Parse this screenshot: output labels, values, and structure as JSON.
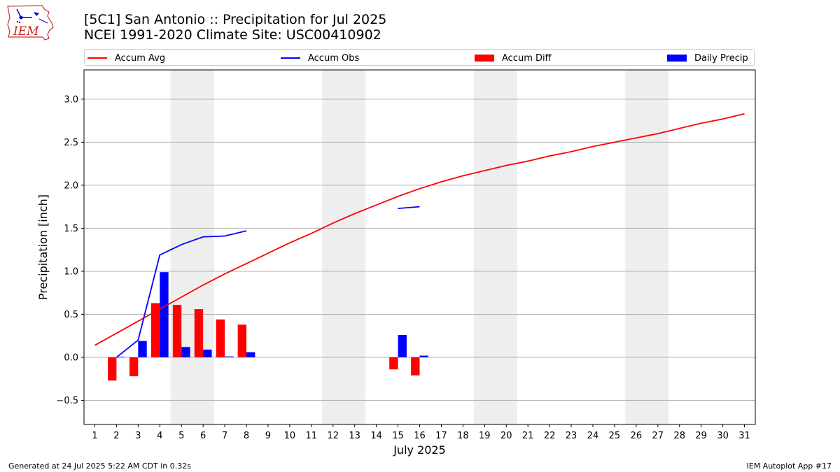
{
  "title_line1": "[5C1] San Antonio :: Precipitation for Jul 2025",
  "title_line2": "NCEI 1991-2020 Climate Site: USC00410902",
  "logo_text": "IEM",
  "footer_left": "Generated at 24 Jul 2025 5:22 AM CDT in 0.32s",
  "footer_right": "IEM Autoplot App #17",
  "colors": {
    "accum_avg": "#ff0000",
    "accum_obs": "#0000ff",
    "accum_diff": "#ff0000",
    "daily_precip": "#0000ff",
    "weekend_shade": "#eeeeee",
    "grid": "#b0b0b0"
  },
  "legend": [
    {
      "label": "Accum Avg",
      "kind": "line",
      "color": "#ff0000"
    },
    {
      "label": "Accum Obs",
      "kind": "line",
      "color": "#0000ff"
    },
    {
      "label": "Accum Diff",
      "kind": "patch",
      "color": "#ff0000"
    },
    {
      "label": "Daily Precip",
      "kind": "patch",
      "color": "#0000ff"
    }
  ],
  "chart_data": {
    "type": "bar",
    "xlabel": "July 2025",
    "ylabel": "Precipitation [inch]",
    "xlim": [
      0.5,
      31.5
    ],
    "ylim": [
      -0.78,
      3.34
    ],
    "yticks": [
      -0.5,
      0.0,
      0.5,
      1.0,
      1.5,
      2.0,
      2.5,
      3.0
    ],
    "ytick_labels": [
      "−0.5",
      "0.0",
      "0.5",
      "1.0",
      "1.5",
      "2.0",
      "2.5",
      "3.0"
    ],
    "xticks": [
      1,
      2,
      3,
      4,
      5,
      6,
      7,
      8,
      9,
      10,
      11,
      12,
      13,
      14,
      15,
      16,
      17,
      18,
      19,
      20,
      21,
      22,
      23,
      24,
      25,
      26,
      27,
      28,
      29,
      30,
      31
    ],
    "grid": "y",
    "legend_position": "top",
    "weekend_bands": [
      [
        4.5,
        6.5
      ],
      [
        11.5,
        13.5
      ],
      [
        18.5,
        20.5
      ],
      [
        25.5,
        27.5
      ]
    ],
    "series": [
      {
        "name": "Accum Avg",
        "type": "line",
        "x": [
          1,
          2,
          3,
          4,
          5,
          6,
          7,
          8,
          9,
          10,
          11,
          12,
          13,
          14,
          15,
          16,
          17,
          18,
          19,
          20,
          21,
          22,
          23,
          24,
          25,
          26,
          27,
          28,
          29,
          30,
          31
        ],
        "values": [
          0.14,
          0.28,
          0.42,
          0.56,
          0.7,
          0.84,
          0.97,
          1.09,
          1.21,
          1.33,
          1.44,
          1.56,
          1.67,
          1.77,
          1.87,
          1.96,
          2.04,
          2.11,
          2.17,
          2.23,
          2.28,
          2.34,
          2.39,
          2.45,
          2.5,
          2.55,
          2.6,
          2.66,
          2.72,
          2.77,
          2.83
        ]
      },
      {
        "name": "Accum Obs",
        "type": "line",
        "x": [
          2,
          3,
          4,
          5,
          6,
          7,
          8,
          15,
          16
        ],
        "values": [
          0.0,
          0.2,
          1.19,
          1.31,
          1.4,
          1.41,
          1.47,
          1.73,
          1.75
        ],
        "segments": [
          [
            2,
            8
          ],
          [
            15,
            16
          ]
        ]
      },
      {
        "name": "Accum Diff",
        "type": "bar",
        "x": [
          2,
          3,
          4,
          5,
          6,
          7,
          8,
          15,
          16
        ],
        "values": [
          -0.27,
          -0.22,
          0.63,
          0.61,
          0.56,
          0.44,
          0.38,
          -0.14,
          -0.21
        ]
      },
      {
        "name": "Daily Precip",
        "type": "bar",
        "x": [
          2,
          3,
          4,
          5,
          6,
          7,
          8,
          15,
          16
        ],
        "values": [
          0.005,
          0.19,
          0.99,
          0.12,
          0.09,
          0.01,
          0.06,
          0.26,
          0.02
        ]
      }
    ]
  }
}
